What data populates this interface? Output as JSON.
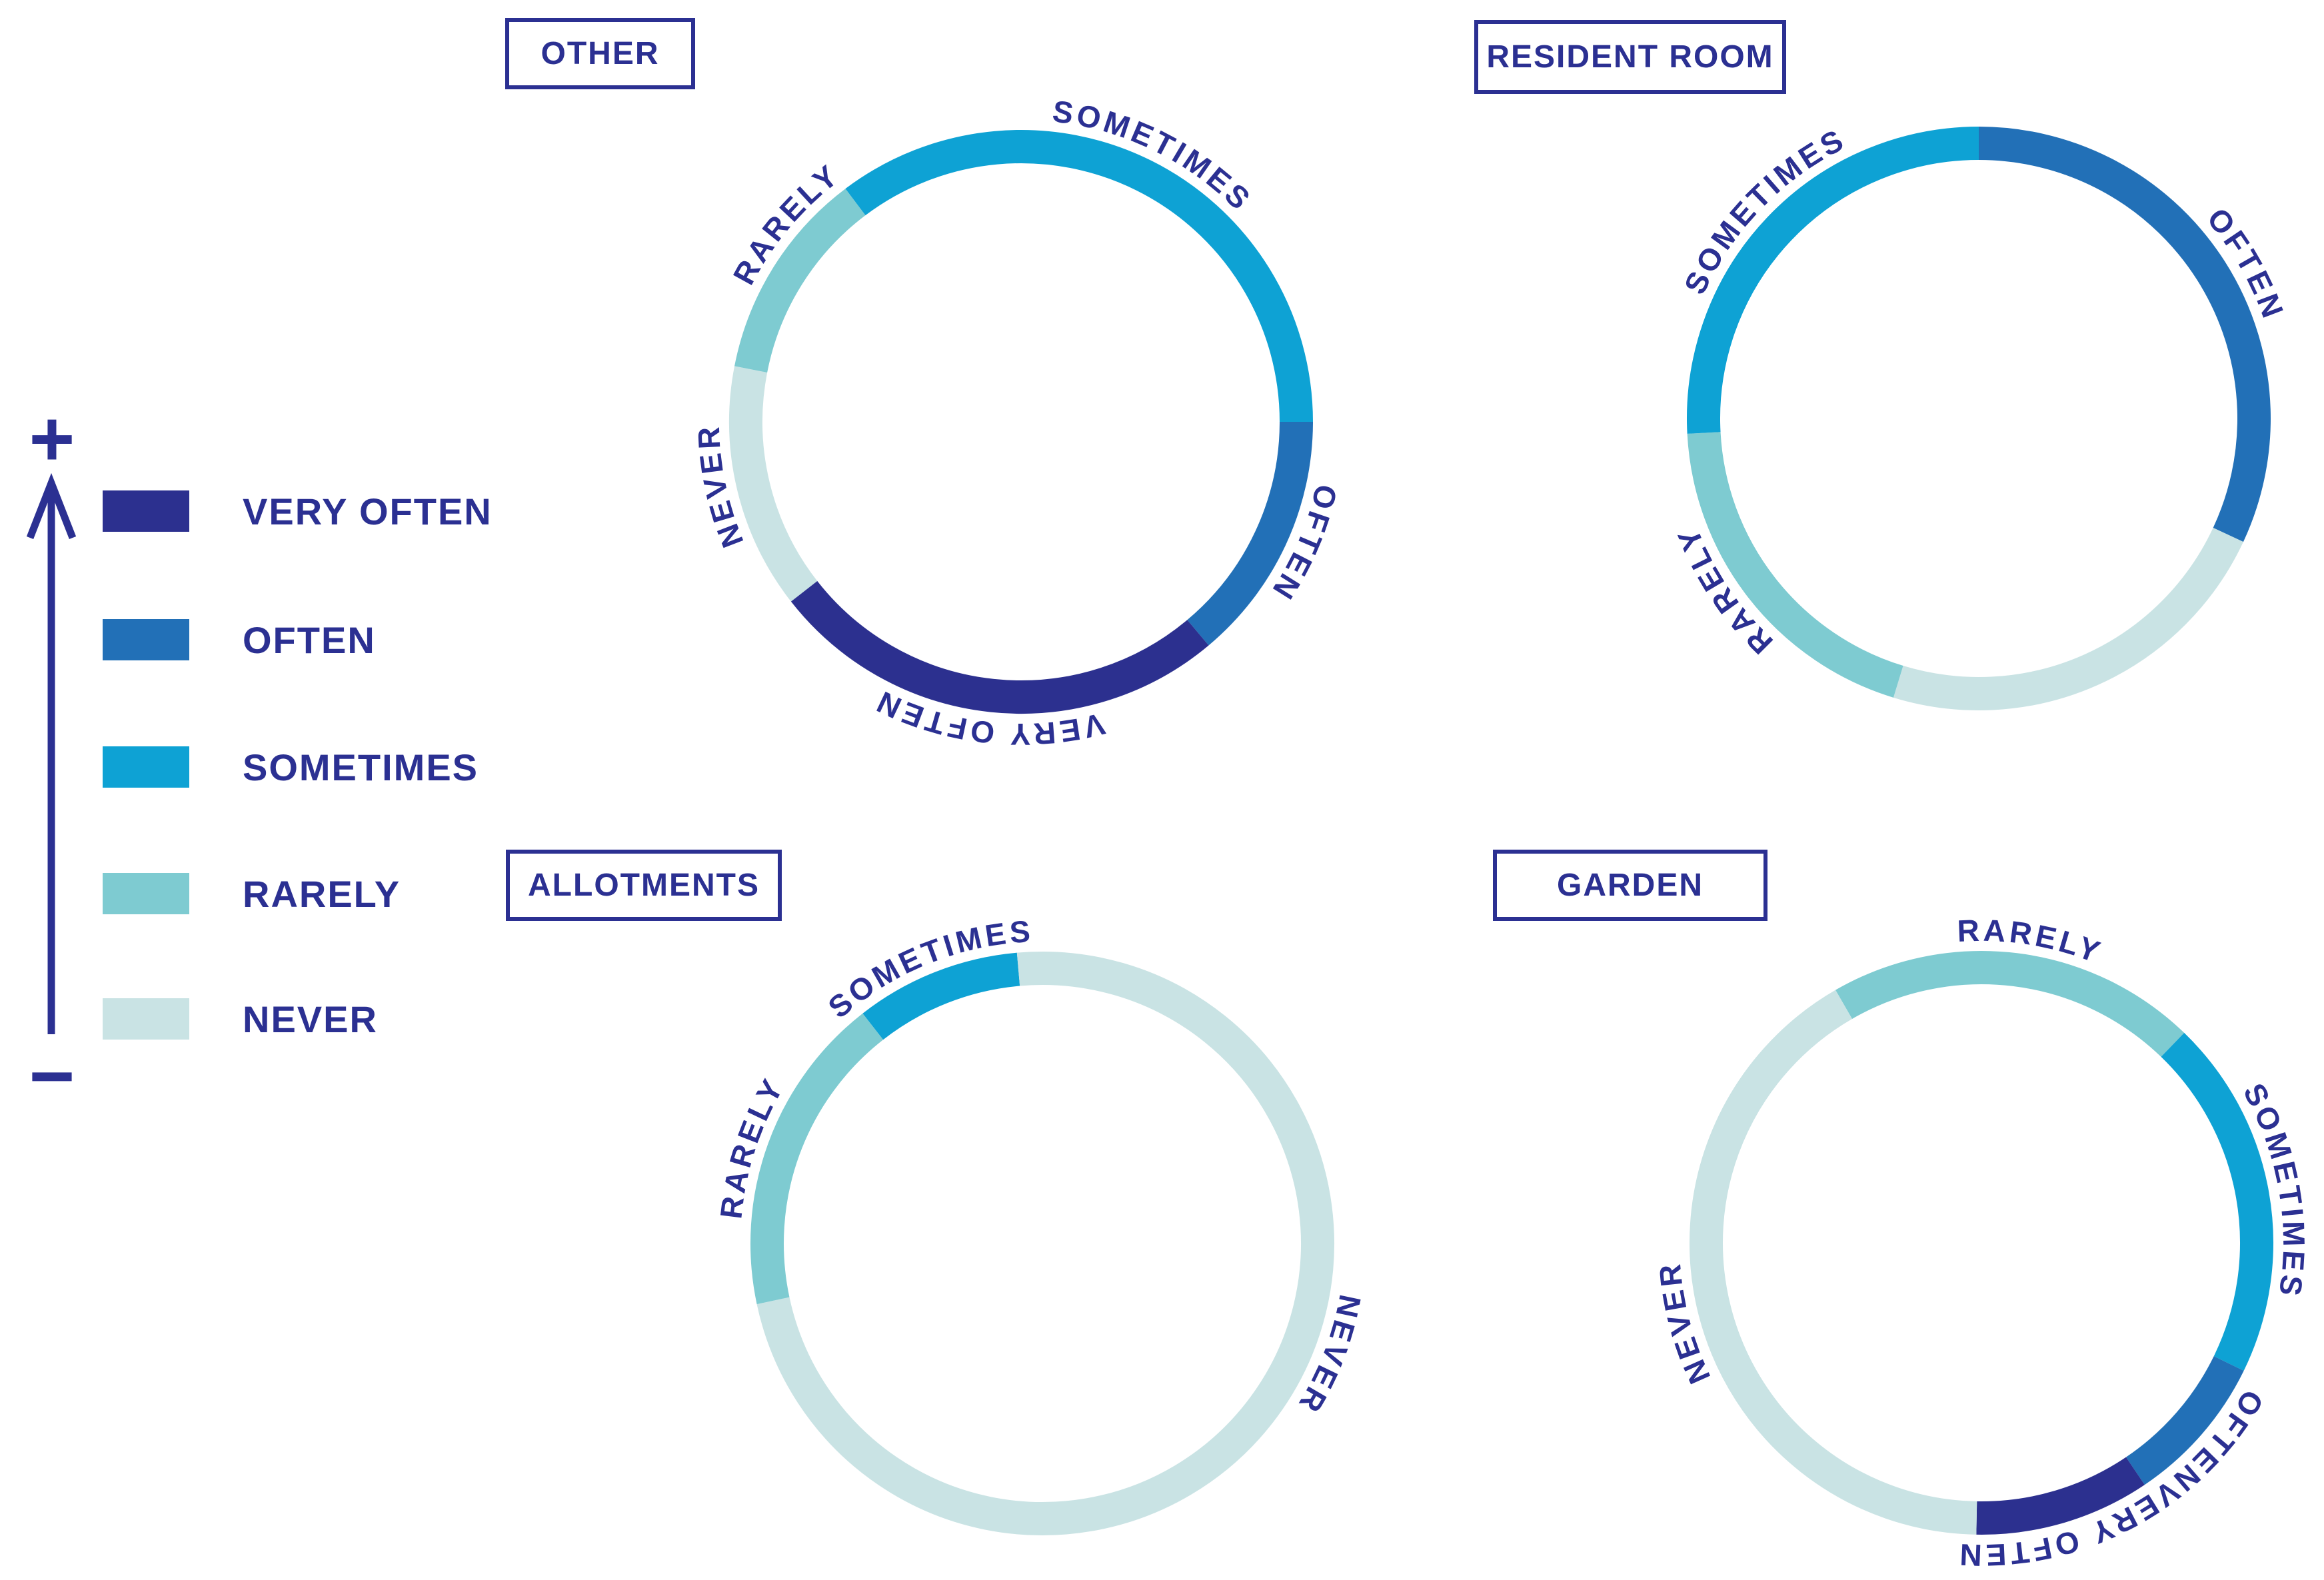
{
  "palette": {
    "navy": "#2c308f",
    "blue": "#2270b7",
    "cyan": "#0ea2d4",
    "teal": "#7ecbd1",
    "pale": "#c9e3e4",
    "text": "#2b3092"
  },
  "scale": {
    "top_symbol": "+",
    "bottom_symbol": "−"
  },
  "legend": {
    "items": [
      {
        "label": "VERY OFTEN",
        "color_key": "navy"
      },
      {
        "label": "OFTEN",
        "color_key": "blue"
      },
      {
        "label": "SOMETIMES",
        "color_key": "cyan"
      },
      {
        "label": "RARELY",
        "color_key": "teal"
      },
      {
        "label": "NEVER",
        "color_key": "pale"
      }
    ]
  },
  "chart_data": [
    {
      "type": "donut",
      "title": "OTHER",
      "unit": "degrees of ring, clockwise from 12 o'clock",
      "segments": [
        {
          "label": "SOMETIMES",
          "color_key": "cyan",
          "start_deg": 323,
          "end_deg": 450,
          "label_angle_deg": 26,
          "labeled": true
        },
        {
          "label": "OFTEN",
          "color_key": "blue",
          "start_deg": 90,
          "end_deg": 140,
          "label_angle_deg": 113,
          "labeled": true
        },
        {
          "label": "VERY OFTEN",
          "color_key": "navy",
          "start_deg": 140,
          "end_deg": 232,
          "label_angle_deg": 186,
          "labeled": true
        },
        {
          "label": "NEVER",
          "color_key": "pale",
          "start_deg": 232,
          "end_deg": 281,
          "label_angle_deg": 258,
          "labeled": true
        },
        {
          "label": "RARELY",
          "color_key": "teal",
          "start_deg": 281,
          "end_deg": 323,
          "label_angle_deg": 310,
          "labeled": true
        }
      ]
    },
    {
      "type": "donut",
      "title": "RESIDENT ROOM",
      "unit": "degrees of ring, clockwise from 12 o'clock",
      "segments": [
        {
          "label": "OFTEN",
          "color_key": "blue",
          "start_deg": 0,
          "end_deg": 115,
          "label_angle_deg": 60,
          "labeled": true
        },
        {
          "label": "NEVER",
          "color_key": "pale",
          "start_deg": 115,
          "end_deg": 197,
          "label_angle_deg": 156,
          "labeled": false
        },
        {
          "label": "RARELY",
          "color_key": "teal",
          "start_deg": 197,
          "end_deg": 267,
          "label_angle_deg": 236,
          "labeled": true
        },
        {
          "label": "SOMETIMES",
          "color_key": "cyan",
          "start_deg": 267,
          "end_deg": 360,
          "label_angle_deg": 314,
          "labeled": true
        }
      ]
    },
    {
      "type": "donut",
      "title": "ALLOTMENTS",
      "unit": "degrees of ring, clockwise from 12 o'clock",
      "segments": [
        {
          "label": "SOMETIMES",
          "color_key": "cyan",
          "start_deg": 322,
          "end_deg": 355,
          "label_angle_deg": 338,
          "labeled": true
        },
        {
          "label": "NEVER",
          "color_key": "pale",
          "start_deg": 355,
          "end_deg": 618,
          "label_angle_deg": 111,
          "labeled": true
        },
        {
          "label": "RARELY",
          "color_key": "teal",
          "start_deg": 258,
          "end_deg": 322,
          "label_angle_deg": 288,
          "labeled": true
        }
      ]
    },
    {
      "type": "donut",
      "title": "GARDEN",
      "unit": "degrees of ring, clockwise from 12 o'clock",
      "segments": [
        {
          "label": "RARELY",
          "color_key": "teal",
          "start_deg": 330,
          "end_deg": 404,
          "label_angle_deg": 9,
          "labeled": true
        },
        {
          "label": "SOMETIMES",
          "color_key": "cyan",
          "start_deg": 44,
          "end_deg": 116,
          "label_angle_deg": 80,
          "labeled": true
        },
        {
          "label": "OFTEN",
          "color_key": "blue",
          "start_deg": 116,
          "end_deg": 146,
          "label_angle_deg": 130,
          "labeled": true
        },
        {
          "label": "VERY OFTEN",
          "color_key": "navy",
          "start_deg": 146,
          "end_deg": 181,
          "label_angle_deg": 163,
          "labeled": true
        },
        {
          "label": "NEVER",
          "color_key": "pale",
          "start_deg": 181,
          "end_deg": 330,
          "label_angle_deg": 255,
          "labeled": true
        }
      ]
    }
  ]
}
